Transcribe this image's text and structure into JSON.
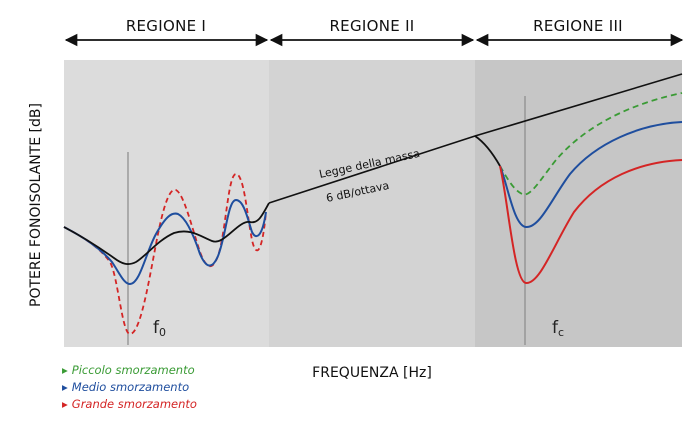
{
  "diagram": {
    "regions": [
      {
        "label": "REGIONE I"
      },
      {
        "label": "REGIONE II"
      },
      {
        "label": "REGIONE III"
      }
    ],
    "y_axis_label": "POTERE FONOISOLANTE [dB]",
    "x_axis_label": "FREQUENZA [Hz]",
    "mass_law_line1": "Legge della massa",
    "mass_law_line2": "6 dB/ottava",
    "f0_main": "f",
    "f0_sub": "0",
    "fc_main": "f",
    "fc_sub": "c",
    "colors": {
      "region1": "#dcdcdc",
      "region2": "#d3d3d3",
      "region3": "#c6c6c6",
      "black_curve": "#111111",
      "small_damping": "#3a9b35",
      "medium_damping": "#1f4e9e",
      "large_damping": "#d42525"
    }
  },
  "legend": [
    {
      "label": "Piccolo smorzamento",
      "color": "#3a9b35",
      "marker": "▸"
    },
    {
      "label": "Medio smorzamento",
      "color": "#1f4e9e",
      "marker": "▸"
    },
    {
      "label": "Grande smorzamento",
      "color": "#d42525",
      "marker": "▸"
    }
  ]
}
